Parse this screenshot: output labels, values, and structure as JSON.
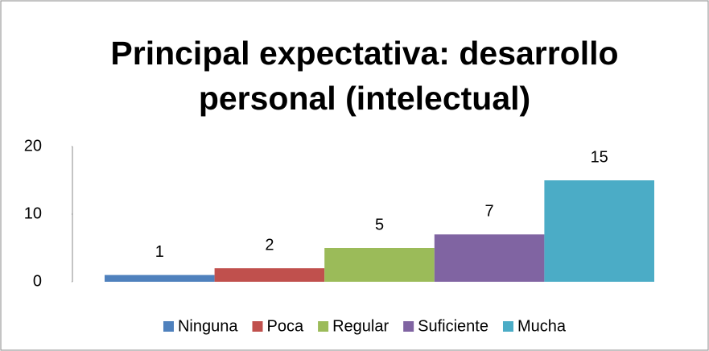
{
  "chart_data": {
    "type": "bar",
    "title": "Principal expectativa: desarrollo personal (intelectual)",
    "categories": [
      null
    ],
    "series": [
      {
        "name": "Ninguna",
        "color": "#4f81bd",
        "values": [
          1
        ]
      },
      {
        "name": "Poca",
        "color": "#c0504d",
        "values": [
          2
        ]
      },
      {
        "name": "Regular",
        "color": "#9bbb59",
        "values": [
          5
        ]
      },
      {
        "name": "Suficiente",
        "color": "#8064a2",
        "values": [
          7
        ]
      },
      {
        "name": "Mucha",
        "color": "#4bacc6",
        "values": [
          15
        ]
      }
    ],
    "ylim": [
      0,
      20
    ],
    "yticks": [
      0,
      10,
      20
    ],
    "grid": false,
    "legend": "bottom",
    "data_labels": true
  }
}
